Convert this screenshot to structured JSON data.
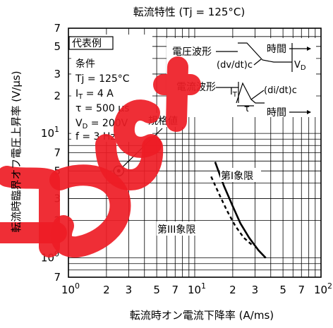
{
  "chart_data": {
    "type": "line",
    "title": "転流特性 (Tj = 125°C)",
    "xlabel": "転流時オン電流下降率 (A/ms)",
    "ylabel": "転流時臨界オフ電圧上昇率 (V/µs)",
    "xscale": "log",
    "yscale": "log",
    "xlim": [
      1,
      100
    ],
    "ylim": [
      0.7,
      70
    ],
    "x_ticks": [
      {
        "v": 1,
        "base": "10",
        "exp": "0",
        "plain": ""
      },
      {
        "v": 2,
        "base": "",
        "exp": "",
        "plain": "2"
      },
      {
        "v": 3,
        "base": "",
        "exp": "",
        "plain": "3"
      },
      {
        "v": 5,
        "base": "",
        "exp": "",
        "plain": "5"
      },
      {
        "v": 7,
        "base": "",
        "exp": "",
        "plain": "7"
      },
      {
        "v": 10,
        "base": "10",
        "exp": "1",
        "plain": ""
      },
      {
        "v": 20,
        "base": "",
        "exp": "",
        "plain": "2"
      },
      {
        "v": 30,
        "base": "",
        "exp": "",
        "plain": "3"
      },
      {
        "v": 50,
        "base": "",
        "exp": "",
        "plain": "5"
      },
      {
        "v": 70,
        "base": "",
        "exp": "",
        "plain": "7"
      },
      {
        "v": 100,
        "base": "10",
        "exp": "2",
        "plain": ""
      }
    ],
    "y_ticks": [
      {
        "v": 0.7,
        "base": "",
        "exp": "",
        "plain": "7"
      },
      {
        "v": 1,
        "base": "10",
        "exp": "0",
        "plain": ""
      },
      {
        "v": 2,
        "base": "",
        "exp": "",
        "plain": "2"
      },
      {
        "v": 3,
        "base": "",
        "exp": "",
        "plain": "3"
      },
      {
        "v": 5,
        "base": "",
        "exp": "",
        "plain": "5"
      },
      {
        "v": 7,
        "base": "",
        "exp": "",
        "plain": "7"
      },
      {
        "v": 10,
        "base": "10",
        "exp": "1",
        "plain": ""
      },
      {
        "v": 20,
        "base": "",
        "exp": "",
        "plain": "2"
      },
      {
        "v": 30,
        "base": "",
        "exp": "",
        "plain": "3"
      },
      {
        "v": 50,
        "base": "",
        "exp": "",
        "plain": "5"
      },
      {
        "v": 70,
        "base": "",
        "exp": "",
        "plain": "7"
      }
    ],
    "series": [
      {
        "name": "第I象限",
        "style": "solid",
        "x": [
          14.5,
          17,
          20,
          23,
          27,
          32,
          36.5
        ],
        "y": [
          5.9,
          3.8,
          2.6,
          1.9,
          1.45,
          1.15,
          1.0
        ]
      },
      {
        "name": "第III象限",
        "style": "dashed",
        "x": [
          13.5,
          15.5,
          18,
          21,
          24.5,
          29
        ],
        "y": [
          4.5,
          3.3,
          2.4,
          1.8,
          1.45,
          1.25
        ]
      }
    ],
    "spec_point": {
      "label": "規格値",
      "x": 2.5,
      "y": 5.0
    },
    "conditions": {
      "box_title": "代表例",
      "heading": "条件",
      "lines": [
        {
          "text": "Tj = 125°C",
          "sub": ""
        },
        {
          "text": "I",
          "sub": "T",
          "rest": " = 4 A"
        },
        {
          "text": "τ = 500 µs",
          "sub": ""
        },
        {
          "text": "V",
          "sub": "D",
          "rest": " = 200V"
        },
        {
          "text": "f = 3 Hz",
          "sub": ""
        }
      ]
    },
    "waveform": {
      "voltage_label": "電圧波形",
      "current_label": "電流波形",
      "time_label": "時間",
      "dvdt_label": "(dv/dt)c",
      "didt_label": "(di/dt)c",
      "vd_label": "V",
      "vd_sub": "D",
      "it_label": "I",
      "it_sub": "T",
      "tau_label": "τ"
    },
    "grid": true
  },
  "watermark": {
    "color": "#ee1c25"
  }
}
